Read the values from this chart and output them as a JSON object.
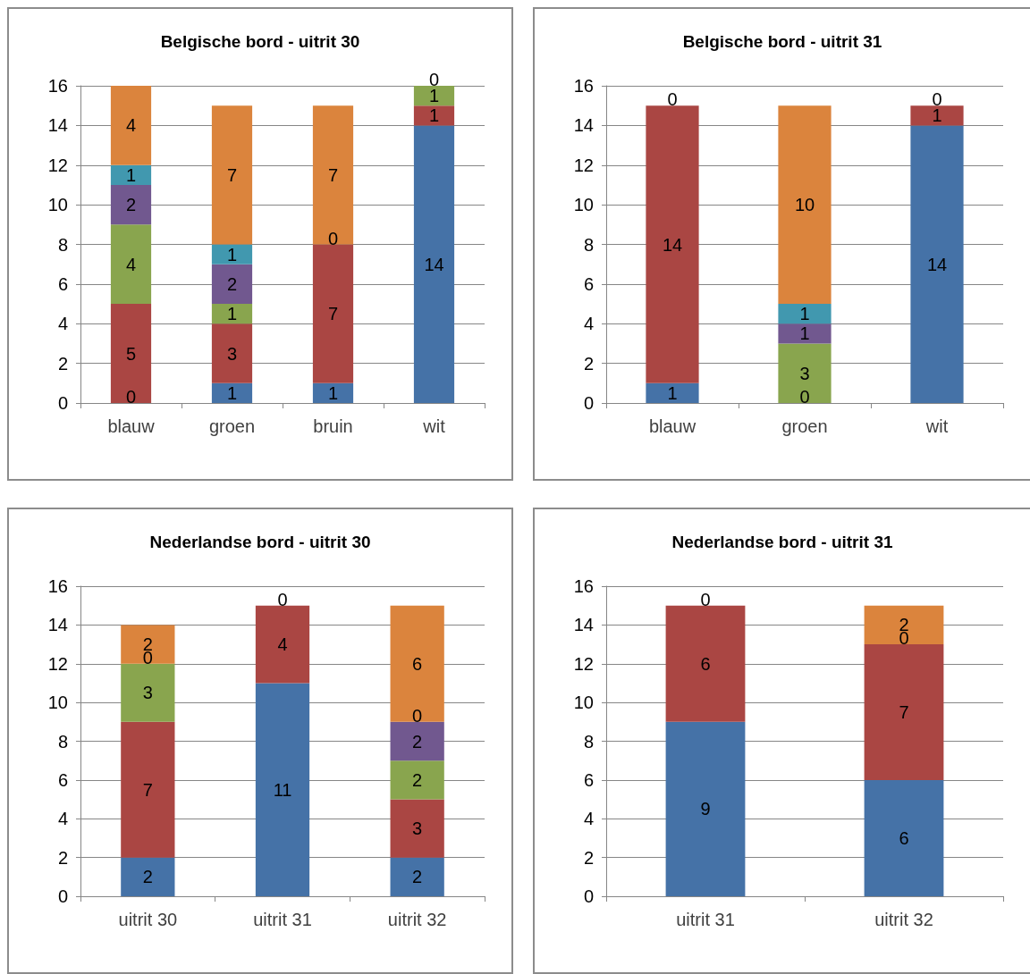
{
  "chart_data": [
    {
      "type": "bar",
      "title": "Belgische bord - uitrit 30",
      "categories": [
        "blauw",
        "groen",
        "bruin",
        "wit"
      ],
      "stacked": true,
      "data_labels": true,
      "grid": "y",
      "ylim": [
        0,
        16
      ],
      "yticks": [
        0,
        2,
        4,
        6,
        8,
        10,
        12,
        14,
        16
      ],
      "series": [
        {
          "color": "#4572a7",
          "values": [
            null,
            1,
            1,
            14
          ]
        },
        {
          "color": "#aa4643",
          "values": [
            5,
            3,
            7,
            1
          ]
        },
        {
          "color": "#89a54e",
          "values": [
            4,
            1,
            null,
            1
          ]
        },
        {
          "color": "#71588f",
          "values": [
            2,
            2,
            null,
            null
          ]
        },
        {
          "color": "#4198af",
          "values": [
            1,
            1,
            null,
            null
          ]
        },
        {
          "color": "#db843d",
          "values": [
            4,
            7,
            7,
            null
          ]
        }
      ],
      "annotations": [
        {
          "text": "0",
          "x": "blauw",
          "y": 0
        },
        {
          "text": "0",
          "x": "bruin",
          "y": 8
        },
        {
          "text": "0",
          "x": "wit",
          "y": 16
        }
      ]
    },
    {
      "type": "bar",
      "title": "Belgische bord - uitrit 31",
      "categories": [
        "blauw",
        "groen",
        "wit"
      ],
      "stacked": true,
      "data_labels": true,
      "grid": "y",
      "ylim": [
        0,
        16
      ],
      "yticks": [
        0,
        2,
        4,
        6,
        8,
        10,
        12,
        14,
        16
      ],
      "series": [
        {
          "color": "#4572a7",
          "values": [
            1,
            null,
            14
          ]
        },
        {
          "color": "#aa4643",
          "values": [
            14,
            null,
            1
          ]
        },
        {
          "color": "#89a54e",
          "values": [
            null,
            3,
            null
          ]
        },
        {
          "color": "#71588f",
          "values": [
            null,
            1,
            null
          ]
        },
        {
          "color": "#4198af",
          "values": [
            null,
            1,
            null
          ]
        },
        {
          "color": "#db843d",
          "values": [
            null,
            10,
            null
          ]
        }
      ],
      "annotations": [
        {
          "text": "0",
          "x": "blauw",
          "y": 15
        },
        {
          "text": "0",
          "x": "groen",
          "y": 0
        },
        {
          "text": "0",
          "x": "wit",
          "y": 15
        }
      ]
    },
    {
      "type": "bar",
      "title": "Nederlandse bord - uitrit 30",
      "categories": [
        "uitrit 30",
        "uitrit 31",
        "uitrit 32"
      ],
      "stacked": true,
      "data_labels": true,
      "grid": "y",
      "ylim": [
        0,
        16
      ],
      "yticks": [
        0,
        2,
        4,
        6,
        8,
        10,
        12,
        14,
        16
      ],
      "series": [
        {
          "color": "#4572a7",
          "values": [
            2,
            11,
            2
          ]
        },
        {
          "color": "#aa4643",
          "values": [
            7,
            4,
            3
          ]
        },
        {
          "color": "#89a54e",
          "values": [
            3,
            null,
            2
          ]
        },
        {
          "color": "#71588f",
          "values": [
            null,
            null,
            2
          ]
        },
        {
          "color": "#db843d",
          "values": [
            2,
            null,
            6
          ]
        }
      ],
      "annotations": [
        {
          "text": "0",
          "x": "uitrit 30",
          "y": 12
        },
        {
          "text": "0",
          "x": "uitrit 31",
          "y": 15
        },
        {
          "text": "0",
          "x": "uitrit 32",
          "y": 9
        }
      ]
    },
    {
      "type": "bar",
      "title": "Nederlandse bord - uitrit 31",
      "categories": [
        "uitrit 31",
        "uitrit 32"
      ],
      "stacked": true,
      "data_labels": true,
      "grid": "y",
      "ylim": [
        0,
        16
      ],
      "yticks": [
        0,
        2,
        4,
        6,
        8,
        10,
        12,
        14,
        16
      ],
      "series": [
        {
          "color": "#4572a7",
          "values": [
            9,
            6
          ]
        },
        {
          "color": "#aa4643",
          "values": [
            6,
            7
          ]
        },
        {
          "color": "#db843d",
          "values": [
            null,
            2
          ]
        }
      ],
      "annotations": [
        {
          "text": "0",
          "x": "uitrit 31",
          "y": 15
        },
        {
          "text": "0",
          "x": "uitrit 32",
          "y": 13
        }
      ]
    }
  ]
}
